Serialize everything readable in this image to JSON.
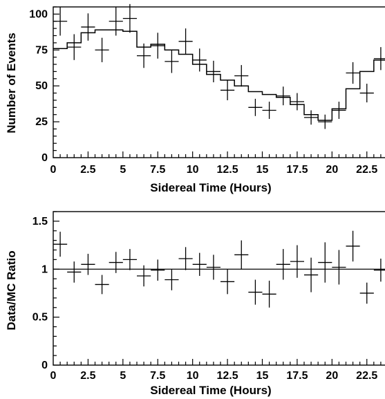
{
  "chart_data": [
    {
      "type": "scatter",
      "xlabel": "Sidereal Time (Hours)",
      "ylabel": "Number of Events",
      "xlim": [
        0,
        24
      ],
      "ylim": [
        0,
        105
      ],
      "x_ticks": [
        0,
        2.5,
        5,
        7.5,
        10,
        12.5,
        15,
        17.5,
        20,
        22.5
      ],
      "x_tick_labels": [
        "0",
        "2.5",
        "5",
        "7.5",
        "10",
        "12.5",
        "15",
        "17.5",
        "20",
        "22.5"
      ],
      "y_ticks": [
        0,
        25,
        50,
        75,
        100
      ],
      "y_tick_labels": [
        "0",
        "25",
        "50",
        "75",
        "100"
      ],
      "series": [
        {
          "kind": "points_with_errors",
          "x": [
            0.5,
            1.5,
            2.5,
            3.5,
            4.5,
            5.5,
            6.5,
            7.5,
            8.5,
            9.5,
            10.5,
            11.5,
            12.5,
            13.5,
            14.5,
            15.5,
            16.5,
            17.5,
            18.5,
            19.5,
            20.5,
            21.5,
            22.5,
            23.5
          ],
          "y": [
            95,
            77,
            91,
            75,
            95,
            97,
            71,
            78,
            67,
            81,
            68,
            60,
            47,
            57,
            35,
            33,
            43,
            39,
            28,
            25,
            33,
            59,
            45,
            69
          ],
          "yerr": [
            10,
            9,
            9.5,
            8.5,
            10,
            10,
            8.5,
            9,
            8,
            9,
            8,
            7.5,
            7,
            7.5,
            6,
            6,
            6.5,
            6,
            5,
            5,
            6,
            7.5,
            6.5,
            8
          ]
        },
        {
          "kind": "step_histogram",
          "x": [
            0.5,
            1.5,
            2.5,
            3.5,
            4.5,
            5.5,
            6.5,
            7.5,
            8.5,
            9.5,
            10.5,
            11.5,
            12.5,
            13.5,
            14.5,
            15.5,
            16.5,
            17.5,
            18.5,
            19.5,
            20.5,
            21.5,
            22.5,
            23.5
          ],
          "y": [
            76,
            80,
            87,
            89,
            89,
            88,
            77,
            79,
            75,
            72,
            65,
            58,
            54,
            50,
            46,
            44,
            42,
            37,
            30,
            26,
            34,
            48,
            60,
            68
          ]
        }
      ]
    },
    {
      "type": "scatter",
      "xlabel": "Sidereal Time (Hours)",
      "ylabel": "Data/MC Ratio",
      "xlim": [
        0,
        24
      ],
      "ylim": [
        0,
        1.6
      ],
      "x_ticks": [
        0,
        2.5,
        5,
        7.5,
        10,
        12.5,
        15,
        17.5,
        20,
        22.5
      ],
      "x_tick_labels": [
        "0",
        "2.5",
        "5",
        "7.5",
        "10",
        "12.5",
        "15",
        "17.5",
        "20",
        "22.5"
      ],
      "y_ticks": [
        0,
        0.5,
        1,
        1.5
      ],
      "y_tick_labels": [
        "0",
        "0.5",
        "1",
        "1.5"
      ],
      "reference_line": 1,
      "series": [
        {
          "kind": "points_with_errors",
          "x": [
            0.5,
            1.5,
            2.5,
            3.5,
            4.5,
            5.5,
            6.5,
            7.5,
            8.5,
            9.5,
            10.5,
            11.5,
            12.5,
            13.5,
            14.5,
            15.5,
            16.5,
            17.5,
            18.5,
            19.5,
            20.5,
            21.5,
            22.5,
            23.5
          ],
          "y": [
            1.26,
            0.97,
            1.05,
            0.84,
            1.07,
            1.1,
            0.93,
            0.99,
            0.89,
            1.11,
            1.05,
            1.02,
            0.87,
            1.15,
            0.76,
            0.74,
            1.05,
            1.08,
            0.94,
            1.07,
            1.02,
            1.24,
            0.75,
            0.99
          ],
          "yerr": [
            0.13,
            0.11,
            0.11,
            0.1,
            0.11,
            0.11,
            0.11,
            0.11,
            0.11,
            0.12,
            0.12,
            0.13,
            0.13,
            0.15,
            0.13,
            0.14,
            0.16,
            0.17,
            0.18,
            0.21,
            0.18,
            0.16,
            0.11,
            0.12
          ]
        }
      ]
    }
  ]
}
